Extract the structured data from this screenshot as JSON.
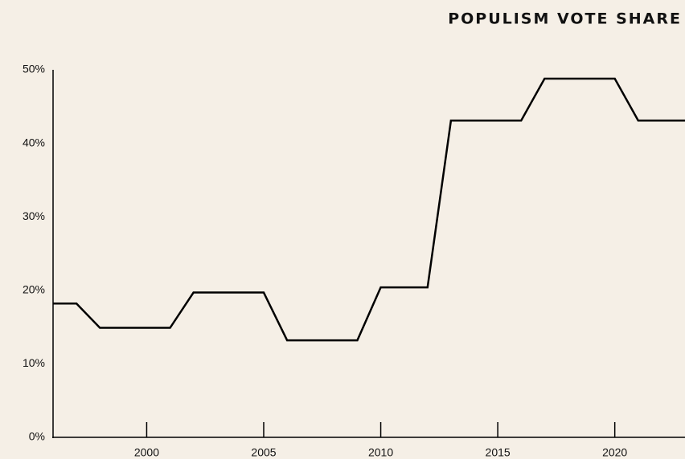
{
  "chart_data": {
    "type": "line",
    "title": "POPULISM VOTE SHARE",
    "x": [
      1996,
      1997,
      1998,
      1999,
      2000,
      2001,
      2002,
      2003,
      2004,
      2005,
      2006,
      2007,
      2008,
      2009,
      2010,
      2011,
      2012,
      2013,
      2014,
      2015,
      2016,
      2017,
      2018,
      2019,
      2020,
      2021,
      2022,
      2023
    ],
    "series": [
      {
        "name": "Populism vote share",
        "color": "#000000",
        "values": [
          18.2,
          18.2,
          14.9,
          14.9,
          14.9,
          14.9,
          19.7,
          19.7,
          19.7,
          19.7,
          13.2,
          13.2,
          13.2,
          13.2,
          20.4,
          20.4,
          20.4,
          43.1,
          43.1,
          43.1,
          43.1,
          48.8,
          48.8,
          48.8,
          48.8,
          43.1,
          43.1,
          43.1
        ]
      }
    ],
    "xlim": [
      1996,
      2023
    ],
    "xticks": [
      2000,
      2005,
      2010,
      2015,
      2020
    ],
    "ylim": [
      0,
      50
    ],
    "yticks": [
      {
        "value": 0,
        "label": "0%"
      },
      {
        "value": 10,
        "label": "10%"
      },
      {
        "value": 20,
        "label": "20%"
      },
      {
        "value": 30,
        "label": "30%"
      },
      {
        "value": 40,
        "label": "40%"
      },
      {
        "value": 50,
        "label": "50%"
      }
    ],
    "grid": false
  }
}
